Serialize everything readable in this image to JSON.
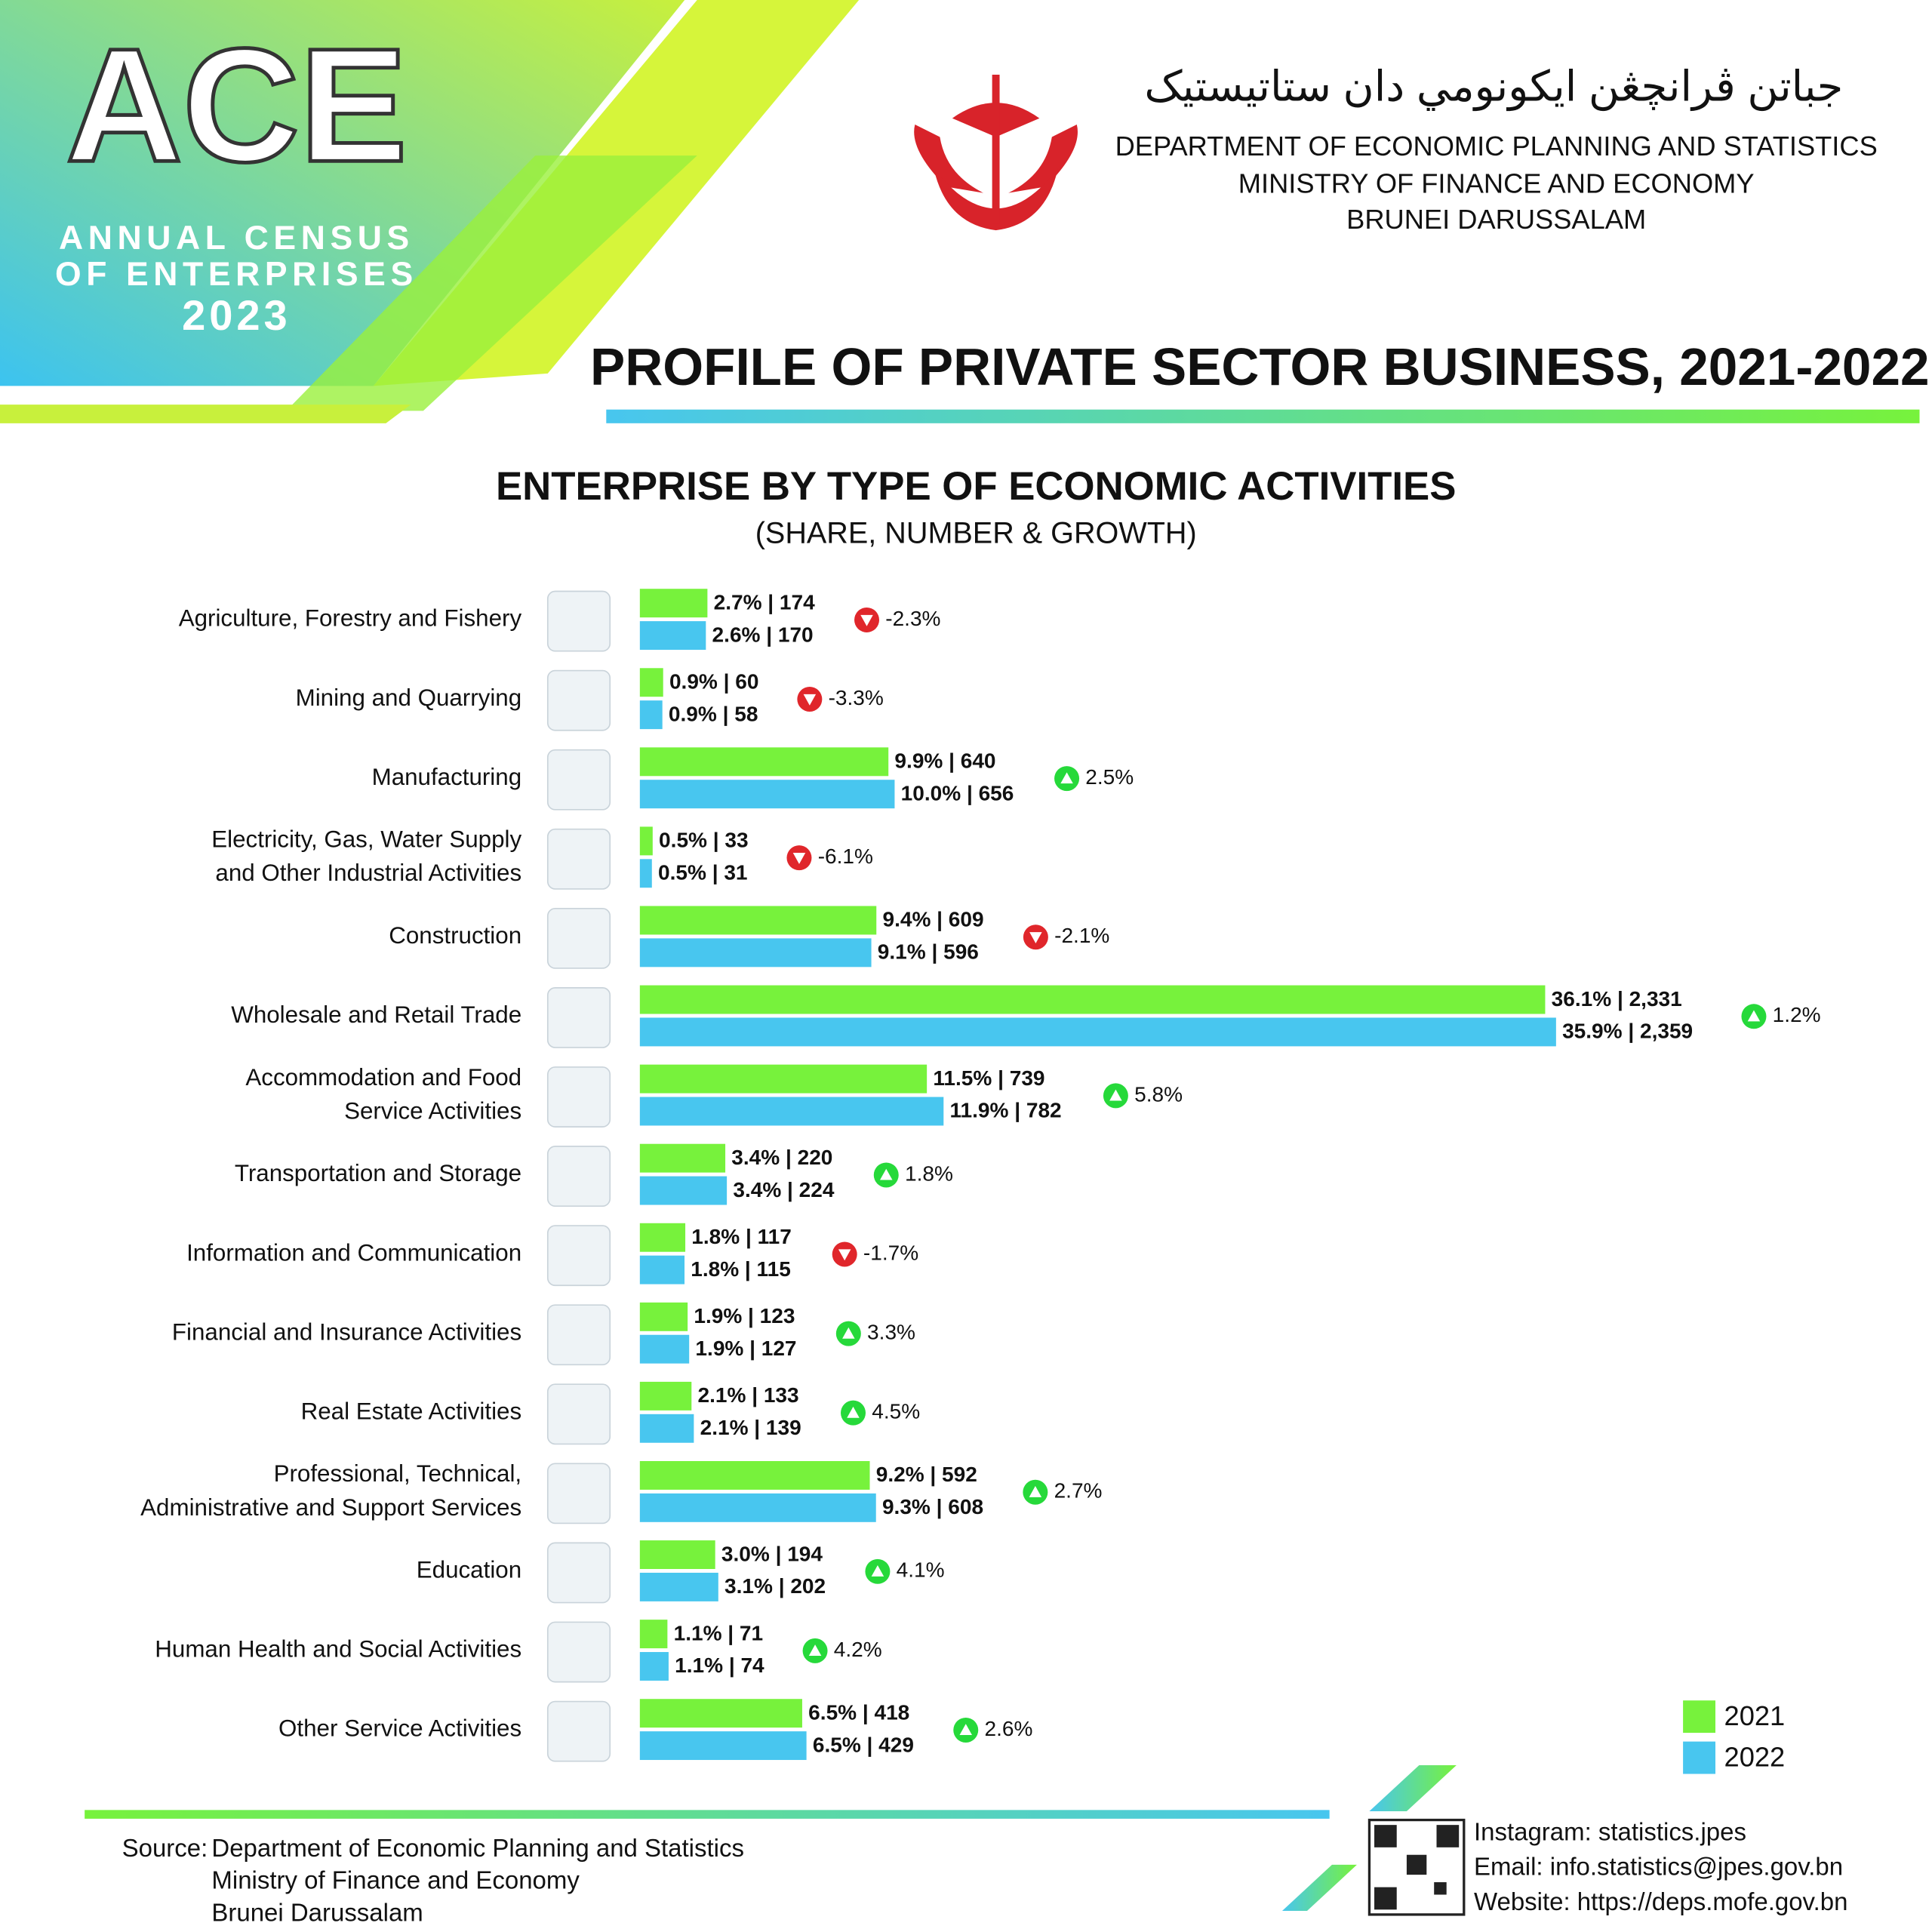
{
  "header": {
    "logo_text": "ACE",
    "census_lines": [
      "ANNUAL CENSUS",
      "OF ENTERPRISES"
    ],
    "year": "2023",
    "jawi": "جباتن ڤرانچڠن ايكونومي دان ستاتيستيک",
    "org_lines": [
      "DEPARTMENT OF ECONOMIC PLANNING AND STATISTICS",
      "MINISTRY OF FINANCE AND ECONOMY",
      "BRUNEI DARUSSALAM"
    ],
    "title": "PROFILE OF PRIVATE SECTOR BUSINESS, 2021-2022"
  },
  "chart_data": {
    "type": "bar",
    "orientation": "horizontal",
    "title": "ENTERPRISE BY TYPE OF ECONOMIC ACTIVITIES",
    "subtitle": "(SHARE, NUMBER & GROWTH)",
    "categories": [
      [
        "Agriculture, Forestry and Fishery"
      ],
      [
        "Mining and Quarrying"
      ],
      [
        "Manufacturing"
      ],
      [
        "Electricity, Gas, Water Supply",
        "and Other Industrial Activities"
      ],
      [
        "Construction"
      ],
      [
        "Wholesale and Retail Trade"
      ],
      [
        "Accommodation and Food",
        "Service Activities"
      ],
      [
        "Transportation and Storage"
      ],
      [
        "Information and Communication"
      ],
      [
        "Financial and Insurance Activities"
      ],
      [
        "Real Estate Activities"
      ],
      [
        "Professional, Technical,",
        "Administrative and Support Services"
      ],
      [
        "Education"
      ],
      [
        "Human Health and Social Activities"
      ],
      [
        "Other Service Activities"
      ]
    ],
    "series": [
      {
        "name": "2021",
        "color": "#77f23c",
        "values": [
          174,
          60,
          640,
          33,
          609,
          2331,
          739,
          220,
          117,
          123,
          133,
          592,
          194,
          71,
          418
        ],
        "value_labels": [
          "2.7% | 174",
          "0.9% | 60",
          "9.9% | 640",
          "0.5% | 33",
          "9.4% | 609",
          "36.1% | 2,331",
          "11.5% | 739",
          "3.4% | 220",
          "1.8% | 117",
          "1.9% | 123",
          "2.1% | 133",
          "9.2% | 592",
          "3.0% | 194",
          "1.1% | 71",
          "6.5% | 418"
        ]
      },
      {
        "name": "2022",
        "color": "#48c6ef",
        "values": [
          170,
          58,
          656,
          31,
          596,
          2359,
          782,
          224,
          115,
          127,
          139,
          608,
          202,
          74,
          429
        ],
        "value_labels": [
          "2.6% | 170",
          "0.9% | 58",
          "10.0% | 656",
          "0.5% | 31",
          "9.1% | 596",
          "35.9% | 2,359",
          "11.9% | 782",
          "3.4% | 224",
          "1.8% | 115",
          "1.9% | 127",
          "2.1% | 139",
          "9.3% | 608",
          "3.1% | 202",
          "1.1% | 74",
          "6.5% | 429"
        ]
      }
    ],
    "growth": [
      -2.3,
      -3.3,
      2.5,
      -6.1,
      -2.1,
      1.2,
      5.8,
      1.8,
      -1.7,
      3.3,
      4.5,
      2.7,
      4.1,
      4.2,
      2.6
    ],
    "growth_labels": [
      "-2.3%",
      "-3.3%",
      "2.5%",
      "-6.1%",
      "-2.1%",
      "1.2%",
      "5.8%",
      "1.8%",
      "-1.7%",
      "3.3%",
      "4.5%",
      "2.7%",
      "4.1%",
      "4.2%",
      "2.6%"
    ],
    "legend": "bottom-right"
  },
  "footer": {
    "source_label": "Source:",
    "source_lines": [
      "Department of Economic Planning and Statistics",
      "Ministry of Finance and Economy",
      "Brunei Darussalam"
    ],
    "contacts": [
      "Instagram: statistics.jpes",
      "Email: info.statistics@jpes.gov.bn",
      "Website: https://deps.mofe.gov.bn"
    ]
  }
}
